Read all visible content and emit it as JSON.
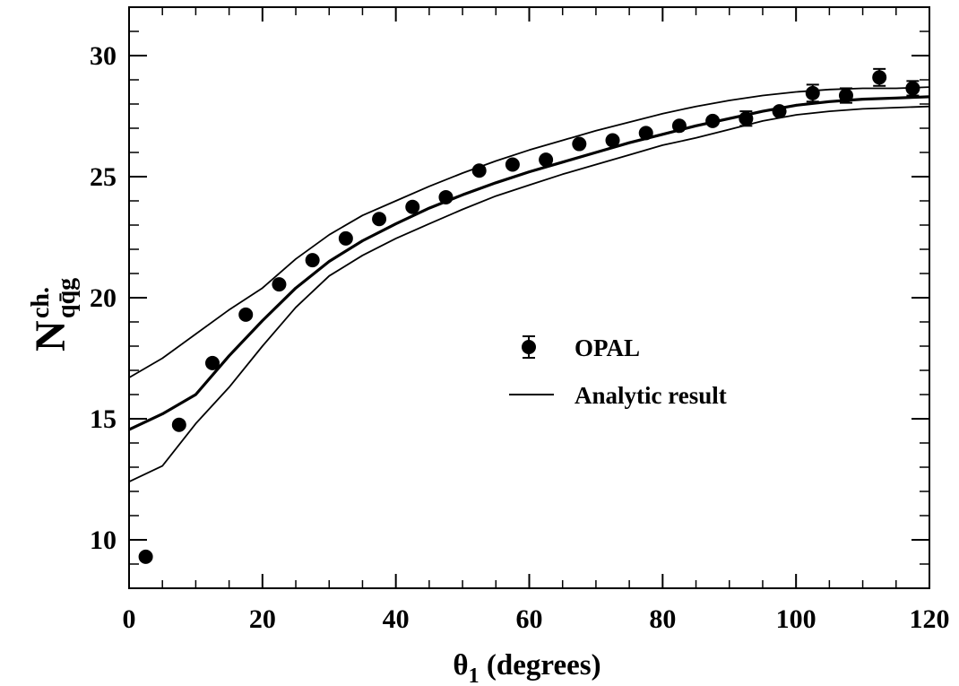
{
  "chart_data": {
    "type": "scatter",
    "xlabel": {
      "symbol": "θ",
      "subscript": "1",
      "rest": " (degrees)"
    },
    "ylabel": {
      "base": "N",
      "superscript": "ch.",
      "subscript": "qq̄g"
    },
    "xlim": [
      0,
      120
    ],
    "ylim": [
      8,
      32
    ],
    "x_ticks": [
      0,
      20,
      40,
      60,
      80,
      100,
      120
    ],
    "y_ticks": [
      10,
      15,
      20,
      25,
      30
    ],
    "x_tick_labels": [
      "0",
      "20",
      "40",
      "60",
      "80",
      "100",
      "120"
    ],
    "y_tick_labels": [
      "10",
      "15",
      "20",
      "25",
      "30"
    ],
    "x_minor_step": 5,
    "y_minor_step": 1,
    "grid": false,
    "legend_position": "right-center",
    "series": [
      {
        "name": "OPAL",
        "kind": "points",
        "color": "#000000",
        "x": [
          2.5,
          7.5,
          12.5,
          17.5,
          22.5,
          27.5,
          32.5,
          37.5,
          42.5,
          47.5,
          52.5,
          57.5,
          62.5,
          67.5,
          72.5,
          77.5,
          82.5,
          87.5,
          92.5,
          97.5,
          102.5,
          107.5,
          112.5,
          117.5
        ],
        "y": [
          9.3,
          14.75,
          17.3,
          19.3,
          20.55,
          21.55,
          22.45,
          23.25,
          23.75,
          24.15,
          25.25,
          25.5,
          25.7,
          26.35,
          26.5,
          26.8,
          27.1,
          27.3,
          27.4,
          27.7,
          28.45,
          28.35,
          29.1,
          28.65
        ],
        "y_err": [
          0.1,
          0.1,
          0.1,
          0.1,
          0.1,
          0.1,
          0.1,
          0.1,
          0.1,
          0.1,
          0.1,
          0.1,
          0.1,
          0.1,
          0.1,
          0.15,
          0.15,
          0.25,
          0.3,
          0.2,
          0.35,
          0.3,
          0.35,
          0.3
        ]
      },
      {
        "name": "Analytic result",
        "kind": "line",
        "color": "#000000",
        "x": [
          0,
          5,
          10,
          15,
          20,
          25,
          30,
          35,
          40,
          45,
          50,
          55,
          60,
          65,
          70,
          75,
          80,
          85,
          90,
          95,
          100,
          105,
          110,
          115,
          120
        ],
        "y": [
          14.55,
          15.2,
          16.0,
          17.6,
          19.05,
          20.4,
          21.5,
          22.35,
          23.05,
          23.7,
          24.25,
          24.75,
          25.2,
          25.6,
          26.0,
          26.4,
          26.75,
          27.1,
          27.4,
          27.7,
          27.95,
          28.1,
          28.2,
          28.25,
          28.3
        ]
      },
      {
        "kind": "band-upper",
        "color": "#000000",
        "x": [
          0,
          5,
          10,
          15,
          20,
          25,
          30,
          35,
          40,
          45,
          50,
          55,
          60,
          65,
          70,
          75,
          80,
          85,
          90,
          95,
          100,
          105,
          110,
          115,
          120
        ],
        "y": [
          16.7,
          17.5,
          18.5,
          19.5,
          20.4,
          21.6,
          22.6,
          23.4,
          24.0,
          24.6,
          25.15,
          25.65,
          26.1,
          26.5,
          26.9,
          27.25,
          27.6,
          27.9,
          28.15,
          28.35,
          28.5,
          28.6,
          28.65,
          28.65,
          28.7
        ]
      },
      {
        "kind": "band-lower",
        "color": "#000000",
        "x": [
          0,
          5,
          10,
          15,
          20,
          25,
          30,
          35,
          40,
          45,
          50,
          55,
          60,
          65,
          70,
          75,
          80,
          85,
          90,
          95,
          100,
          105,
          110,
          115,
          120
        ],
        "y": [
          12.4,
          13.05,
          14.8,
          16.3,
          18.0,
          19.6,
          20.9,
          21.75,
          22.45,
          23.05,
          23.65,
          24.2,
          24.65,
          25.1,
          25.5,
          25.9,
          26.3,
          26.6,
          26.95,
          27.3,
          27.55,
          27.7,
          27.8,
          27.85,
          27.9
        ]
      }
    ],
    "legend": {
      "point_label": "OPAL",
      "line_label": "Analytic result"
    }
  }
}
